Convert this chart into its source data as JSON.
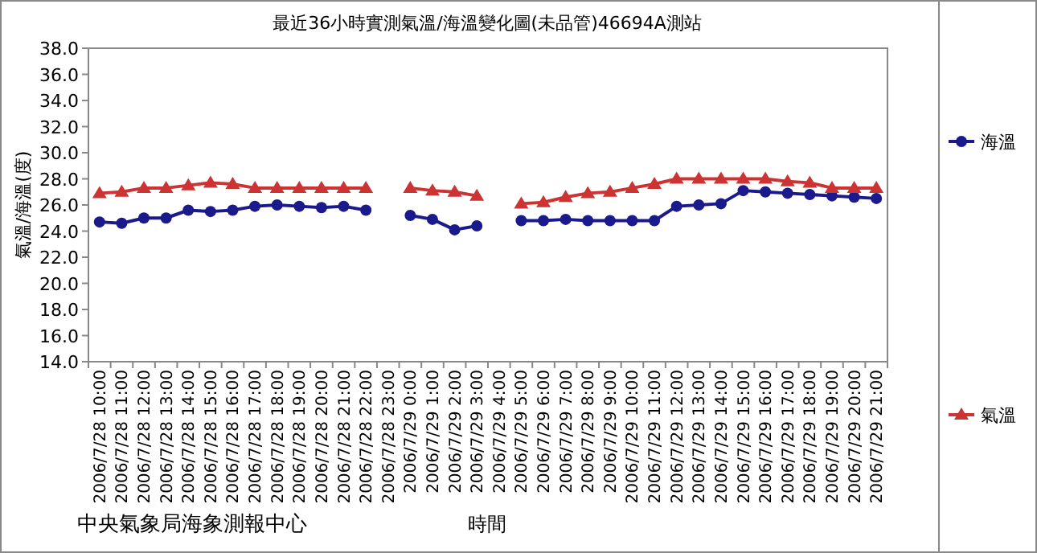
{
  "chart_data": {
    "type": "line",
    "title": "最近36小時實測氣溫/海溫變化圖(未品管)46694A測站",
    "xlabel": "時間",
    "ylabel": "氣溫/海溫(度)",
    "categories": [
      "2006/7/28 10:00",
      "2006/7/28 11:00",
      "2006/7/28 12:00",
      "2006/7/28 13:00",
      "2006/7/28 14:00",
      "2006/7/28 15:00",
      "2006/7/28 16:00",
      "2006/7/28 17:00",
      "2006/7/28 18:00",
      "2006/7/28 19:00",
      "2006/7/28 20:00",
      "2006/7/28 21:00",
      "2006/7/28 22:00",
      "2006/7/28 23:00",
      "2006/7/29 0:00",
      "2006/7/29 1:00",
      "2006/7/29 2:00",
      "2006/7/29 3:00",
      "2006/7/29 4:00",
      "2006/7/29 5:00",
      "2006/7/29 6:00",
      "2006/7/29 7:00",
      "2006/7/29 8:00",
      "2006/7/29 9:00",
      "2006/7/29 10:00",
      "2006/7/29 11:00",
      "2006/7/29 12:00",
      "2006/7/29 13:00",
      "2006/7/29 14:00",
      "2006/7/29 15:00",
      "2006/7/29 16:00",
      "2006/7/29 17:00",
      "2006/7/29 18:00",
      "2006/7/29 19:00",
      "2006/7/29 20:00",
      "2006/7/29 21:00"
    ],
    "series": [
      {
        "name": "海溫",
        "color": "#1a1a8c",
        "marker": "circle",
        "values": [
          24.7,
          24.6,
          25.0,
          25.0,
          25.6,
          25.5,
          25.6,
          25.9,
          26.0,
          25.9,
          25.8,
          25.9,
          25.6,
          null,
          25.2,
          24.9,
          24.1,
          24.4,
          null,
          24.8,
          24.8,
          24.9,
          24.8,
          24.8,
          24.8,
          24.8,
          25.9,
          26.0,
          26.1,
          27.1,
          27.0,
          26.9,
          26.8,
          26.7,
          26.6,
          26.5
        ]
      },
      {
        "name": "氣溫",
        "color": "#cc3333",
        "marker": "triangle",
        "values": [
          26.9,
          27.0,
          27.3,
          27.3,
          27.5,
          27.7,
          27.6,
          27.3,
          27.3,
          27.3,
          27.3,
          27.3,
          27.3,
          null,
          27.3,
          27.1,
          27.0,
          26.7,
          null,
          26.1,
          26.2,
          26.6,
          26.9,
          27.0,
          27.3,
          27.6,
          28.0,
          28.0,
          28.0,
          28.0,
          28.0,
          27.8,
          27.7,
          27.3,
          27.3,
          27.3
        ]
      }
    ],
    "ylim": [
      14,
      38
    ],
    "yticks": [
      {
        "value": 14,
        "label": "14.0"
      },
      {
        "value": 16,
        "label": "16.0"
      },
      {
        "value": 18,
        "label": "18.0"
      },
      {
        "value": 20,
        "label": "20.0"
      },
      {
        "value": 22,
        "label": "22.0"
      },
      {
        "value": 24,
        "label": "24.0"
      },
      {
        "value": 26,
        "label": "26.0"
      },
      {
        "value": 28,
        "label": "28.0"
      },
      {
        "value": 30,
        "label": "30.0"
      },
      {
        "value": 32,
        "label": "32.0"
      },
      {
        "value": 34,
        "label": "34.0"
      },
      {
        "value": 36,
        "label": "36.0"
      },
      {
        "value": 38,
        "label": "38.0"
      }
    ],
    "grid": false,
    "legend": "right",
    "line_style": "solid",
    "annotations": [
      "中央氣象局海象測報中心"
    ]
  }
}
